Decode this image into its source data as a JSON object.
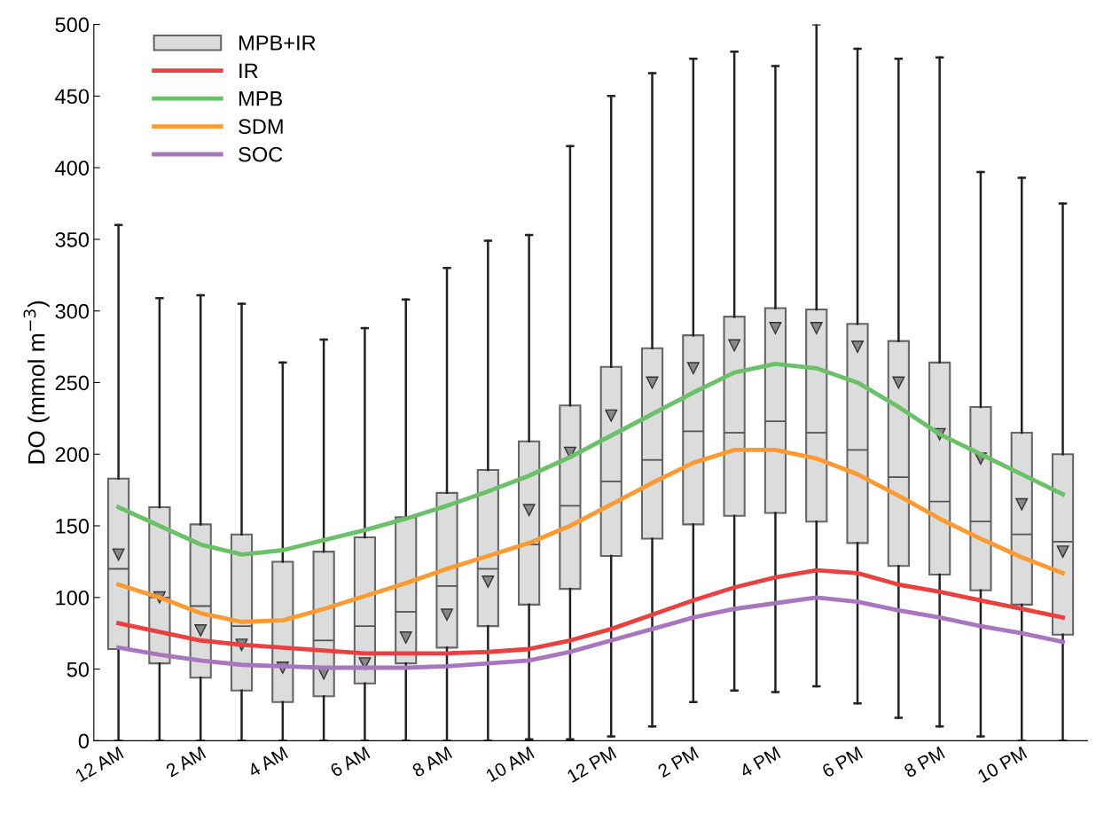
{
  "chart_data": {
    "type": "box",
    "ylabel": "DO (mmol m$^{−3}$)",
    "categories": [
      "12 AM",
      null,
      "2 AM",
      null,
      "4 AM",
      null,
      "6 AM",
      null,
      "8 AM",
      null,
      "10 AM",
      null,
      "12 PM",
      null,
      "2 PM",
      null,
      "4 PM",
      null,
      "6 PM",
      null,
      "8 PM",
      null,
      "10 PM",
      null
    ],
    "ylim": [
      0,
      500
    ],
    "yticks": [
      0,
      50,
      100,
      150,
      200,
      250,
      300,
      350,
      400,
      450,
      500
    ],
    "legend": "top left",
    "grid": false,
    "series": [
      {
        "name": "MPB+IR",
        "color": "#dcdcdc",
        "boxes": [
          {
            "low": 0,
            "q1": 64,
            "median": 120,
            "q3": 183,
            "high": 360,
            "mean": 130
          },
          {
            "low": 0,
            "q1": 54,
            "median": 100,
            "q3": 163,
            "high": 309,
            "mean": 100
          },
          {
            "low": 0,
            "q1": 44,
            "median": 94,
            "q3": 151,
            "high": 311,
            "mean": 77
          },
          {
            "low": 0,
            "q1": 35,
            "median": 80,
            "q3": 144,
            "high": 305,
            "mean": 67
          },
          {
            "low": 0,
            "q1": 27,
            "median": 52,
            "q3": 125,
            "high": 264,
            "mean": 51
          },
          {
            "low": 0,
            "q1": 31,
            "median": 70,
            "q3": 132,
            "high": 280,
            "mean": 47
          },
          {
            "low": 0,
            "q1": 40,
            "median": 80,
            "q3": 142,
            "high": 288,
            "mean": 54
          },
          {
            "low": 0,
            "q1": 54,
            "median": 90,
            "q3": 156,
            "high": 308,
            "mean": 72
          },
          {
            "low": 0,
            "q1": 65,
            "median": 108,
            "q3": 173,
            "high": 330,
            "mean": 88
          },
          {
            "low": 0,
            "q1": 80,
            "median": 120,
            "q3": 189,
            "high": 349,
            "mean": 111
          },
          {
            "low": 1,
            "q1": 95,
            "median": 137,
            "q3": 209,
            "high": 353,
            "mean": 161
          },
          {
            "low": 1,
            "q1": 106,
            "median": 164,
            "q3": 234,
            "high": 415,
            "mean": 201
          },
          {
            "low": 3,
            "q1": 129,
            "median": 181,
            "q3": 261,
            "high": 450,
            "mean": 227
          },
          {
            "low": 10,
            "q1": 141,
            "median": 196,
            "q3": 274,
            "high": 466,
            "mean": 250
          },
          {
            "low": 27,
            "q1": 151,
            "median": 216,
            "q3": 283,
            "high": 476,
            "mean": 260
          },
          {
            "low": 35,
            "q1": 157,
            "median": 215,
            "q3": 296,
            "high": 481,
            "mean": 276
          },
          {
            "low": 34,
            "q1": 159,
            "median": 223,
            "q3": 302,
            "high": 471,
            "mean": 288
          },
          {
            "low": 38,
            "q1": 153,
            "median": 215,
            "q3": 301,
            "high": 500,
            "mean": 288
          },
          {
            "low": 26,
            "q1": 138,
            "median": 203,
            "q3": 291,
            "high": 483,
            "mean": 275
          },
          {
            "low": 16,
            "q1": 122,
            "median": 184,
            "q3": 279,
            "high": 476,
            "mean": 250
          },
          {
            "low": 10,
            "q1": 116,
            "median": 167,
            "q3": 264,
            "high": 477,
            "mean": 214
          },
          {
            "low": 3,
            "q1": 105,
            "median": 153,
            "q3": 233,
            "high": 397,
            "mean": 197
          },
          {
            "low": 0,
            "q1": 95,
            "median": 144,
            "q3": 215,
            "high": 393,
            "mean": 165
          },
          {
            "low": 0,
            "q1": 74,
            "median": 139,
            "q3": 200,
            "high": 375,
            "mean": 132
          }
        ]
      },
      {
        "name": "IR",
        "type": "line",
        "color": "#e8413f",
        "values": [
          82,
          76,
          70,
          67,
          65,
          63,
          61,
          61,
          61,
          62,
          64,
          70,
          78,
          88,
          98,
          107,
          114,
          119,
          117,
          109,
          104,
          98,
          92,
          86
        ]
      },
      {
        "name": "MPB",
        "type": "line",
        "color": "#6cc06a",
        "values": [
          163,
          150,
          137,
          130,
          133,
          140,
          147,
          155,
          164,
          174,
          185,
          198,
          213,
          228,
          243,
          257,
          263,
          260,
          250,
          233,
          214,
          200,
          186,
          172
        ]
      },
      {
        "name": "SDM",
        "type": "line",
        "color": "#fd9a33",
        "values": [
          109,
          100,
          89,
          83,
          84,
          92,
          101,
          110,
          120,
          129,
          138,
          150,
          165,
          180,
          194,
          203,
          203,
          197,
          186,
          171,
          155,
          141,
          128,
          117
        ]
      },
      {
        "name": "SOC",
        "type": "line",
        "color": "#a875bf",
        "values": [
          65,
          60,
          56,
          53,
          52,
          51,
          51,
          51,
          52,
          54,
          56,
          62,
          70,
          78,
          86,
          92,
          96,
          100,
          97,
          91,
          86,
          80,
          75,
          69
        ]
      }
    ]
  }
}
